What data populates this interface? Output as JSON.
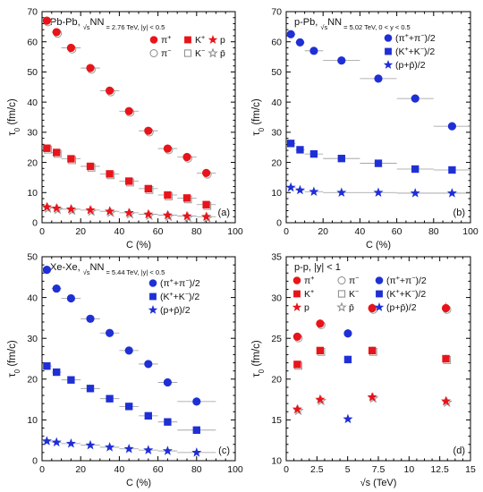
{
  "chart_data": [
    {
      "id": "a",
      "type": "scatter",
      "title": "Pb-Pb, √s_NN = 2.76 TeV, |y| < 0.5",
      "title_parts": [
        "Pb-Pb, ",
        "√s",
        "NN",
        " = 2.76 TeV, |y| < 0.5"
      ],
      "xlabel": "C (%)",
      "ylabel": "τ0 (fm/c)",
      "ylabel_parts": [
        "τ",
        "0",
        " (fm/c)"
      ],
      "panel_label": "(a)",
      "xlim": [
        0,
        100
      ],
      "ylim": [
        0,
        70
      ],
      "xticks": [
        0,
        20,
        40,
        60,
        80,
        100
      ],
      "yticks": [
        0,
        10,
        20,
        30,
        40,
        50,
        60,
        70
      ],
      "show_x_ticklabels": true,
      "legend": {
        "position": "top-right",
        "columns": 3,
        "entries": [
          {
            "label_parts": [
              "π",
              "+",
              ""
            ],
            "color": "#e8141a",
            "marker": "circle",
            "filled": true
          },
          {
            "label_parts": [
              "K",
              "+",
              ""
            ],
            "color": "#e8141a",
            "marker": "square",
            "filled": true
          },
          {
            "label_parts": [
              "p",
              "",
              ""
            ],
            "color": "#e8141a",
            "marker": "star",
            "filled": true
          },
          {
            "label_parts": [
              "π",
              "−",
              ""
            ],
            "color": "#888888",
            "marker": "circle",
            "filled": false
          },
          {
            "label_parts": [
              "K",
              "−",
              ""
            ],
            "color": "#888888",
            "marker": "square",
            "filled": false
          },
          {
            "label_parts": [
              "p̄",
              "",
              ""
            ],
            "color": "#888888",
            "marker": "star",
            "filled": false
          }
        ]
      },
      "series": [
        {
          "name": "π+",
          "marker": "circle",
          "color": "#e8141a",
          "x": [
            2.5,
            7.5,
            15,
            25,
            35,
            45,
            55,
            65,
            75,
            85
          ],
          "y": [
            67,
            63.2,
            58,
            51.3,
            43.8,
            37,
            30.5,
            24.6,
            21.8,
            16.5
          ],
          "xerr": [
            2.5,
            2.5,
            5,
            5,
            5,
            5,
            5,
            5,
            5,
            5
          ]
        },
        {
          "name": "K+",
          "marker": "square",
          "color": "#e8141a",
          "x": [
            2.5,
            7.5,
            15,
            25,
            35,
            45,
            55,
            65,
            75,
            85
          ],
          "y": [
            24.7,
            23.3,
            21.2,
            18.7,
            16.2,
            13.8,
            11.3,
            9.2,
            8.2,
            6
          ],
          "xerr": [
            2.5,
            2.5,
            5,
            5,
            5,
            5,
            5,
            5,
            5,
            5
          ]
        },
        {
          "name": "p",
          "marker": "star",
          "color": "#e8141a",
          "x": [
            2.5,
            7.5,
            15,
            25,
            35,
            45,
            55,
            65,
            75,
            85
          ],
          "y": [
            5.2,
            4.8,
            4.5,
            4.2,
            3.8,
            3.3,
            2.8,
            2.5,
            2.2,
            2
          ],
          "xerr": [
            2.5,
            2.5,
            5,
            5,
            5,
            5,
            5,
            5,
            5,
            5
          ]
        }
      ]
    },
    {
      "id": "b",
      "type": "scatter",
      "title": "p-Pb, √s_NN = 5.02 TeV, 0 < y < 0.5",
      "title_parts": [
        "p-Pb, ",
        "√s",
        "NN",
        " = 5.02 TeV, 0 < y < 0.5"
      ],
      "xlabel": "C (%)",
      "ylabel": "τ0 (fm/c)",
      "ylabel_parts": [
        "τ",
        "0",
        " (fm/c)"
      ],
      "panel_label": "(b)",
      "xlim": [
        0,
        100
      ],
      "ylim": [
        0,
        70
      ],
      "xticks": [
        0,
        20,
        40,
        60,
        80,
        100
      ],
      "yticks": [
        0,
        10,
        20,
        30,
        40,
        50,
        60,
        70
      ],
      "show_x_ticklabels": true,
      "legend": {
        "position": "top-right",
        "columns": 1,
        "entries": [
          {
            "label_parts": [
              "(π",
              "+",
              "+π",
              "−",
              ")/2"
            ],
            "color": "#1f2fd6",
            "marker": "circle",
            "filled": true
          },
          {
            "label_parts": [
              "(K",
              "+",
              "+K",
              "−",
              ")/2"
            ],
            "color": "#1f2fd6",
            "marker": "square",
            "filled": true
          },
          {
            "label_parts": [
              "(p+p̄)/2",
              "",
              ""
            ],
            "color": "#1f2fd6",
            "marker": "star",
            "filled": true
          }
        ]
      },
      "series": [
        {
          "name": "(π++π−)/2",
          "marker": "circle",
          "color": "#1f2fd6",
          "x": [
            2.5,
            7.5,
            15,
            30,
            50,
            70,
            90
          ],
          "y": [
            62.5,
            59.8,
            57,
            53.8,
            47.8,
            41.2,
            32
          ],
          "xerr": [
            2.5,
            2.5,
            5,
            10,
            10,
            10,
            10
          ]
        },
        {
          "name": "(K++K−)/2",
          "marker": "square",
          "color": "#1f2fd6",
          "x": [
            2.5,
            7.5,
            15,
            30,
            50,
            70,
            90
          ],
          "y": [
            26.3,
            24.2,
            22.8,
            21.3,
            19.7,
            17.8,
            17.5
          ],
          "xerr": [
            2.5,
            2.5,
            5,
            10,
            10,
            10,
            10
          ]
        },
        {
          "name": "(p+p̄)/2",
          "marker": "star",
          "color": "#1f2fd6",
          "x": [
            2.5,
            7.5,
            15,
            30,
            50,
            70,
            90
          ],
          "y": [
            11.7,
            10.8,
            10.3,
            10,
            10,
            9.8,
            9.8
          ],
          "xerr": [
            2.5,
            2.5,
            5,
            10,
            10,
            10,
            10
          ]
        }
      ]
    },
    {
      "id": "c",
      "type": "scatter",
      "title": "Xe-Xe, √s_NN = 5.44 TeV, |y| < 0.5",
      "title_parts": [
        "Xe-Xe, ",
        "√s",
        "NN",
        " = 5.44 TeV, |y| < 0.5"
      ],
      "xlabel": "C (%)",
      "ylabel": "τ0 (fm/c)",
      "ylabel_parts": [
        "τ",
        "0",
        " (fm/c)"
      ],
      "panel_label": "(c)",
      "xlim": [
        0,
        100
      ],
      "ylim": [
        0,
        50
      ],
      "xticks": [
        0,
        20,
        40,
        60,
        80,
        100
      ],
      "yticks": [
        0,
        10,
        20,
        30,
        40,
        50
      ],
      "show_x_ticklabels": true,
      "legend": {
        "position": "top-right",
        "columns": 1,
        "entries": [
          {
            "label_parts": [
              "(π",
              "+",
              "+π",
              "−",
              ")/2"
            ],
            "color": "#1f2fd6",
            "marker": "circle",
            "filled": true
          },
          {
            "label_parts": [
              "(K",
              "+",
              "+K",
              "−",
              ")/2"
            ],
            "color": "#1f2fd6",
            "marker": "square",
            "filled": true
          },
          {
            "label_parts": [
              "(p+p̄)/2",
              "",
              ""
            ],
            "color": "#1f2fd6",
            "marker": "star",
            "filled": true
          }
        ]
      },
      "series": [
        {
          "name": "(π++π−)/2",
          "marker": "circle",
          "color": "#1f2fd6",
          "x": [
            2.5,
            7.5,
            15,
            25,
            35,
            45,
            55,
            65,
            80
          ],
          "y": [
            46.8,
            42.2,
            39.8,
            34.8,
            31.3,
            27,
            23.7,
            19.2,
            14.5
          ],
          "xerr": [
            2.5,
            2.5,
            5,
            5,
            5,
            5,
            5,
            5,
            10
          ]
        },
        {
          "name": "(K++K−)/2",
          "marker": "square",
          "color": "#1f2fd6",
          "x": [
            2.5,
            7.5,
            15,
            25,
            35,
            45,
            55,
            65,
            80
          ],
          "y": [
            23.2,
            21.7,
            19.8,
            17.7,
            15.2,
            13.3,
            11,
            9.5,
            7.5
          ],
          "xerr": [
            2.5,
            2.5,
            5,
            5,
            5,
            5,
            5,
            5,
            10
          ]
        },
        {
          "name": "(p+p̄)/2",
          "marker": "star",
          "color": "#1f2fd6",
          "x": [
            2.5,
            7.5,
            15,
            25,
            35,
            45,
            55,
            65,
            80
          ],
          "y": [
            4.8,
            4.5,
            4.2,
            3.8,
            3.3,
            2.9,
            2.6,
            2.4,
            2
          ],
          "xerr": [
            2.5,
            2.5,
            5,
            5,
            5,
            5,
            5,
            5,
            10
          ]
        }
      ]
    },
    {
      "id": "d",
      "type": "scatter",
      "title": "p-p, |y| < 1",
      "title_parts": [
        "p-p, |y| < 1",
        "",
        "",
        ""
      ],
      "xlabel": "√s (TeV)",
      "ylabel": "τ0 (fm/c)",
      "ylabel_parts": [
        "τ",
        "0",
        " (fm/c)"
      ],
      "panel_label": "(d)",
      "xlim": [
        0,
        15
      ],
      "ylim": [
        10,
        35
      ],
      "xticks": [
        0,
        2.5,
        5,
        7.5,
        10,
        12.5,
        15
      ],
      "yticks": [
        10,
        15,
        20,
        25,
        30,
        35
      ],
      "show_x_ticklabels": true,
      "legend": {
        "position": "top-right",
        "columns": 3,
        "entries": [
          {
            "label_parts": [
              "π",
              "+",
              ""
            ],
            "color": "#e8141a",
            "marker": "circle",
            "filled": true
          },
          {
            "label_parts": [
              "π",
              "−",
              ""
            ],
            "color": "#888888",
            "marker": "circle",
            "filled": false
          },
          {
            "label_parts": [
              "(π",
              "+",
              "+π",
              "−",
              ")/2"
            ],
            "color": "#1f2fd6",
            "marker": "circle",
            "filled": true
          },
          {
            "label_parts": [
              "K",
              "+",
              ""
            ],
            "color": "#e8141a",
            "marker": "square",
            "filled": true
          },
          {
            "label_parts": [
              "K",
              "−",
              ""
            ],
            "color": "#888888",
            "marker": "square",
            "filled": false
          },
          {
            "label_parts": [
              "(K",
              "+",
              "+K",
              "−",
              ")/2"
            ],
            "color": "#1f2fd6",
            "marker": "square",
            "filled": true
          },
          {
            "label_parts": [
              "p",
              "",
              ""
            ],
            "color": "#e8141a",
            "marker": "star",
            "filled": true
          },
          {
            "label_parts": [
              "p̄",
              "",
              ""
            ],
            "color": "#888888",
            "marker": "star",
            "filled": false
          },
          {
            "label_parts": [
              "(p+p̄)/2",
              "",
              ""
            ],
            "color": "#1f2fd6",
            "marker": "star",
            "filled": true
          }
        ]
      },
      "series": [
        {
          "name": "π+",
          "marker": "circle",
          "color": "#e8141a",
          "x": [
            0.9,
            2.76,
            7,
            13
          ],
          "y": [
            25.2,
            26.8,
            28.7,
            28.7
          ],
          "yerr": [
            0.4,
            0.5,
            0.6,
            0.7
          ]
        },
        {
          "name": "K+",
          "marker": "square",
          "color": "#e8141a",
          "x": [
            0.9,
            2.76,
            7,
            13
          ],
          "y": [
            21.8,
            23.5,
            23.5,
            22.5
          ],
          "yerr": [
            0.3,
            0.4,
            0.5,
            0.5
          ]
        },
        {
          "name": "p",
          "marker": "star",
          "color": "#e8141a",
          "x": [
            0.9,
            2.76,
            7,
            13
          ],
          "y": [
            16.3,
            17.5,
            17.8,
            17.3
          ],
          "yerr": [
            0.3,
            0.4,
            0.4,
            0.4
          ]
        },
        {
          "name": "(π++π−)/2",
          "marker": "circle",
          "color": "#1f2fd6",
          "x": [
            5.02
          ],
          "y": [
            25.6
          ],
          "yerr": [
            0.5
          ]
        },
        {
          "name": "(K++K−)/2",
          "marker": "square",
          "color": "#1f2fd6",
          "x": [
            5.02
          ],
          "y": [
            22.4
          ],
          "yerr": [
            0.5
          ]
        },
        {
          "name": "(p+p̄)/2",
          "marker": "star",
          "color": "#1f2fd6",
          "x": [
            5.02
          ],
          "y": [
            15.1
          ],
          "yerr": [
            0.2
          ]
        }
      ]
    }
  ]
}
